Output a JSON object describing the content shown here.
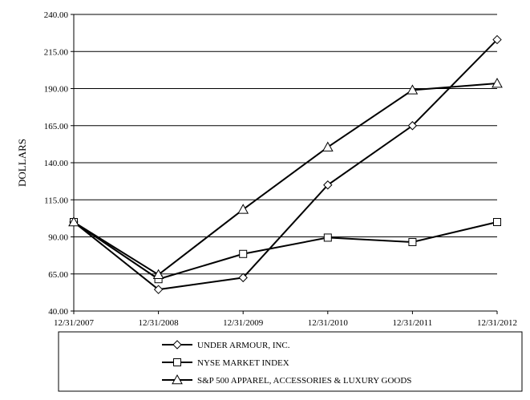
{
  "chart_data": {
    "type": "line",
    "ylabel": "DOLLARS",
    "ylim": [
      40,
      240
    ],
    "yticks": [
      "40.00",
      "65.00",
      "90.00",
      "115.00",
      "140.00",
      "165.00",
      "190.00",
      "215.00",
      "240.00"
    ],
    "categories": [
      "12/31/2007",
      "12/31/2008",
      "12/31/2009",
      "12/31/2010",
      "12/31/2011",
      "12/31/2012"
    ],
    "grid": "horizontal",
    "legend_position": "bottom",
    "series": [
      {
        "name": "UNDER ARMOUR, INC.",
        "marker": "diamond",
        "values": [
          100,
          54.5,
          62.5,
          125,
          165,
          223
        ]
      },
      {
        "name": "NYSE MARKET INDEX",
        "marker": "square",
        "values": [
          100,
          61.5,
          78.5,
          89.5,
          86.5,
          100
        ]
      },
      {
        "name": "S&P 500 APPAREL, ACCESSORIES & LUXURY GOODS",
        "marker": "triangle",
        "values": [
          100,
          64.5,
          108.5,
          150.5,
          189,
          193.5
        ]
      }
    ]
  }
}
